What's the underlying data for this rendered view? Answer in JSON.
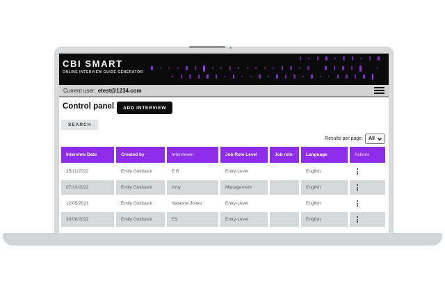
{
  "header": {
    "brand_title": "CBI SMART",
    "brand_subtitle": "ONLINE INTERVIEW GUIDE GENERATOR"
  },
  "user_bar": {
    "label": "Current user:",
    "email": "etest@1234.com",
    "menu_icon": "hamburger-icon"
  },
  "control_panel": {
    "title": "Control panel",
    "add_button": "ADD INTERVIEW",
    "search_button": "SEARCH"
  },
  "results_per_page": {
    "label": "Results per page:",
    "selected": "All",
    "chevron_icon": "chevron-down-icon"
  },
  "table": {
    "columns": [
      {
        "label": "Interview Date",
        "bold": true
      },
      {
        "label": "Created by",
        "bold": true
      },
      {
        "label": "Interviewer",
        "bold": false
      },
      {
        "label": "Job Role Level",
        "bold": true
      },
      {
        "label": "Job role:",
        "bold": true
      },
      {
        "label": "Language",
        "bold": true
      },
      {
        "label": "Actions",
        "bold": false
      }
    ],
    "rows": [
      {
        "interview_date": "25/11/2022",
        "created_by": "Emily Goldsack",
        "interviewer": "E B",
        "job_role_level": "Entry-Level",
        "job_role": "",
        "language": "English",
        "actions_icon": "kebab-menu-icon"
      },
      {
        "interview_date": "07/10/2022",
        "created_by": "Emily Goldsack",
        "interviewer": "Amy",
        "job_role_level": "Management",
        "job_role": "",
        "language": "English",
        "actions_icon": "kebab-menu-icon"
      },
      {
        "interview_date": "12/05/2021",
        "created_by": "Emily Goldsack",
        "interviewer": "Natasha Jones",
        "job_role_level": "Entry-Level",
        "job_role": "",
        "language": "English",
        "actions_icon": "kebab-menu-icon"
      },
      {
        "interview_date": "30/06/2022",
        "created_by": "Emily Goldsack",
        "interviewer": "ES",
        "job_role_level": "Entry-Level",
        "job_role": "",
        "language": "English",
        "actions_icon": "kebab-menu-icon"
      }
    ]
  },
  "colors": {
    "accent_purple": "#8e2cea",
    "pattern_purple": "#a42cf4",
    "header_black": "#0b0b0c",
    "row_alt_gray": "#d6d9da",
    "user_bar_gray": "#d2d2d2"
  }
}
